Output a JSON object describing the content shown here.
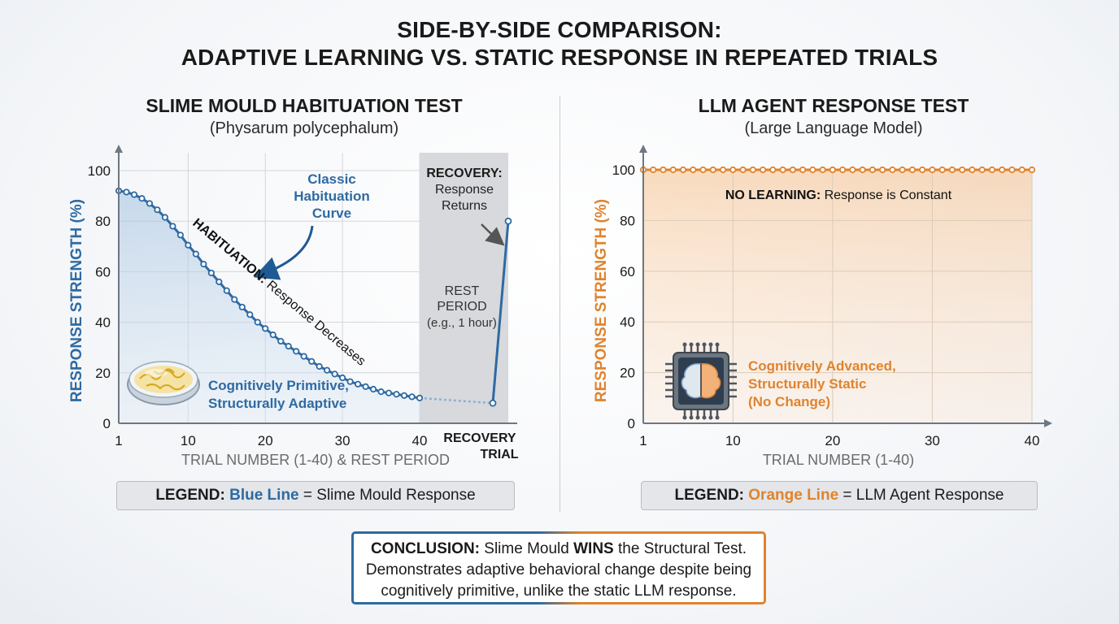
{
  "title": {
    "line1": "SIDE-BY-SIDE COMPARISON:",
    "line2": "ADAPTIVE LEARNING VS. STATIC RESPONSE IN REPEATED TRIALS"
  },
  "colors": {
    "blue": "#2e6aa3",
    "orange": "#e0832d",
    "rest_shade": "#d7d9dc"
  },
  "left": {
    "heading": "SLIME MOULD HABITUATION TEST",
    "subheading": "(Physarum polycephalum)",
    "ylabel": "RESPONSE STRENGTH (%)",
    "xlabel": "TRIAL NUMBER (1-40) & REST PERIOD",
    "annotation_curve": [
      "Classic",
      "Habituation",
      "Curve"
    ],
    "annotation_habituation_bold": "HABITUATION:",
    "annotation_habituation_rest": " Response Decreases",
    "annotation_recovery_bold": "RECOVERY:",
    "annotation_recovery_rest": [
      "Response",
      "Returns"
    ],
    "annotation_rest": [
      "REST",
      "PERIOD",
      "(e.g., 1 hour)"
    ],
    "recovery_tick": [
      "RECOVERY",
      "TRIAL"
    ],
    "badge": [
      "Cognitively Primitive,",
      "Structurally Adaptive"
    ],
    "icon": "petri-dish-icon"
  },
  "right": {
    "heading": "LLM AGENT RESPONSE TEST",
    "subheading": "(Large Language Model)",
    "ylabel": "RESPONSE STRENGTH (%)",
    "xlabel": "TRIAL NUMBER (1-40)",
    "annotation_bold": "NO LEARNING:",
    "annotation_rest": " Response is Constant",
    "badge": [
      "Cognitively Advanced,",
      "Structurally Static",
      "(No Change)"
    ],
    "icon": "brain-chip-icon"
  },
  "legend_left": {
    "prefix": "LEGEND:",
    "colored": "Blue Line",
    "suffix": " = Slime Mould Response"
  },
  "legend_right": {
    "prefix": "LEGEND:",
    "colored": "Orange Line",
    "suffix": " = LLM Agent Response"
  },
  "conclusion": {
    "bold1": "CONCLUSION:",
    "text1": " Slime Mould ",
    "bold2": "WINS",
    "text2": " the Structural Test.",
    "line2": "Demonstrates adaptive behavioral change despite being",
    "line3": "cognitively primitive, unlike the static LLM response."
  },
  "chart_data": [
    {
      "type": "line",
      "title": "SLIME MOULD HABITUATION TEST",
      "subtitle": "(Physarum polycephalum)",
      "xlabel": "TRIAL NUMBER (1-40) & REST PERIOD",
      "ylabel": "RESPONSE STRENGTH (%)",
      "ylim": [
        0,
        100
      ],
      "xlim": [
        1,
        40
      ],
      "x_ticks": [
        "1",
        "10",
        "20",
        "30",
        "40"
      ],
      "y_ticks": [
        "0",
        "20",
        "40",
        "60",
        "80",
        "100"
      ],
      "series": [
        {
          "name": "Slime Mould Response",
          "color": "#2e6aa3",
          "x": [
            1,
            2,
            3,
            4,
            5,
            6,
            7,
            8,
            9,
            10,
            11,
            12,
            13,
            14,
            15,
            16,
            17,
            18,
            19,
            20,
            21,
            22,
            23,
            24,
            25,
            26,
            27,
            28,
            29,
            30,
            31,
            32,
            33,
            34,
            35,
            36,
            37,
            38,
            39,
            40
          ],
          "y": [
            92,
            91.5,
            90.5,
            89,
            87,
            84.5,
            81.5,
            78,
            74.5,
            70.5,
            67,
            63,
            59.5,
            56,
            52.5,
            49,
            46,
            43,
            40,
            37.5,
            35,
            32.5,
            30.5,
            28.5,
            26.5,
            24.5,
            22.5,
            21,
            19.5,
            18,
            16.5,
            15.5,
            14.5,
            13.5,
            12.5,
            12,
            11.5,
            11,
            10.5,
            10
          ]
        }
      ],
      "rest_period": {
        "from_y": 10,
        "to_y": 8
      },
      "recovery_trial": {
        "y": 80
      },
      "grid": true
    },
    {
      "type": "line",
      "title": "LLM AGENT RESPONSE TEST",
      "subtitle": "(Large Language Model)",
      "xlabel": "TRIAL NUMBER (1-40)",
      "ylabel": "RESPONSE STRENGTH (%)",
      "ylim": [
        0,
        100
      ],
      "xlim": [
        1,
        40
      ],
      "x_ticks": [
        "1",
        "10",
        "20",
        "30",
        "40"
      ],
      "y_ticks": [
        "0",
        "20",
        "40",
        "60",
        "80",
        "100"
      ],
      "series": [
        {
          "name": "LLM Agent Response",
          "color": "#e0832d",
          "x": [
            1,
            2,
            3,
            4,
            5,
            6,
            7,
            8,
            9,
            10,
            11,
            12,
            13,
            14,
            15,
            16,
            17,
            18,
            19,
            20,
            21,
            22,
            23,
            24,
            25,
            26,
            27,
            28,
            29,
            30,
            31,
            32,
            33,
            34,
            35,
            36,
            37,
            38,
            39,
            40
          ],
          "y": [
            100,
            100,
            100,
            100,
            100,
            100,
            100,
            100,
            100,
            100,
            100,
            100,
            100,
            100,
            100,
            100,
            100,
            100,
            100,
            100,
            100,
            100,
            100,
            100,
            100,
            100,
            100,
            100,
            100,
            100,
            100,
            100,
            100,
            100,
            100,
            100,
            100,
            100,
            100,
            100
          ]
        }
      ],
      "grid": true
    }
  ]
}
